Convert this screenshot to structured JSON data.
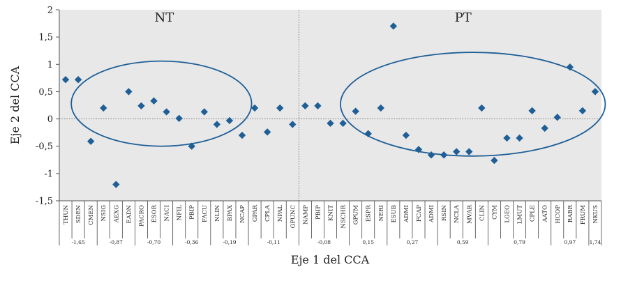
{
  "chart_data": {
    "type": "scatter",
    "xlabel": "Eje 1 del CCA",
    "ylabel": "Eje 2 del CCA",
    "ylim": [
      -1.5,
      2
    ],
    "yticks": [
      2,
      1.5,
      1,
      0.5,
      0,
      -0.5,
      -1,
      -1.5
    ],
    "ytick_labels": [
      "2",
      "1,5",
      "1",
      "0,5",
      "0",
      "-0,5",
      "-1",
      "-1,5"
    ],
    "grid": false,
    "background": "#e8e8e8",
    "marker_color": "#1f5f96",
    "ellipse_color": "#1f5f96",
    "zero_line": "dotted",
    "categories": [
      "THUN",
      "SDEN",
      "CMEN",
      "NSIG",
      "AEXG",
      "EADN",
      "PACRO",
      "ESOR",
      "NACI",
      "NFIL",
      "PBIP",
      "FACU",
      "NLIN",
      "BPAX",
      "NCAP",
      "GPAR",
      "CPLA",
      "NPAL",
      "GPUNC",
      "NAMP",
      "PBIP",
      "KNIT",
      "NSCHR",
      "GPUM",
      "ESPR",
      "NERI",
      "ESUB",
      "ADMI",
      "FCAP",
      "ADMI",
      "RSIN",
      "NCLA",
      "MVAR",
      "CLIN",
      "CYM",
      "LGEO",
      "LMUT",
      "CPLE",
      "AATO",
      "HCOP",
      "RABR",
      "FRUM",
      "NKUS"
    ],
    "values": [
      0.72,
      0.72,
      -0.41,
      0.2,
      -1.2,
      0.5,
      0.24,
      0.33,
      0.13,
      0.01,
      -0.5,
      0.13,
      -0.1,
      -0.03,
      -0.3,
      0.2,
      -0.24,
      0.2,
      -0.1,
      0.24,
      0.24,
      -0.08,
      -0.08,
      0.14,
      -0.27,
      0.2,
      1.7,
      -0.3,
      -0.56,
      -0.66,
      -0.66,
      -0.6,
      -0.6,
      0.2,
      -0.76,
      -0.35,
      -0.35,
      0.15,
      -0.17,
      0.03,
      0.95,
      0.15,
      0.5
    ],
    "groups": [
      {
        "label": "-1,65",
        "start": 0,
        "end": 2
      },
      {
        "label": "-0,87",
        "start": 3,
        "end": 5
      },
      {
        "label": "-0,70",
        "start": 6,
        "end": 8
      },
      {
        "label": "-0,36",
        "start": 9,
        "end": 11
      },
      {
        "label": "-0,19",
        "start": 12,
        "end": 14
      },
      {
        "label": "-0,11",
        "start": 15,
        "end": 18
      },
      {
        "label": "-0,08",
        "start": 19,
        "end": 22
      },
      {
        "label": "0,15",
        "start": 23,
        "end": 25
      },
      {
        "label": "0,27",
        "start": 26,
        "end": 29
      },
      {
        "label": "0,59",
        "start": 30,
        "end": 33
      },
      {
        "label": "0,79",
        "start": 34,
        "end": 38
      },
      {
        "label": "0,97",
        "start": 39,
        "end": 41
      },
      {
        "label": "1,74",
        "start": 42,
        "end": 42
      }
    ],
    "annotations": [
      {
        "text": "NT",
        "center_index": 7.6,
        "center_y": 0.28,
        "rx_cats": 7.15,
        "ry": 0.78
      },
      {
        "text": "PT",
        "center_index": 32.3,
        "center_y": 0.27,
        "rx_cats": 10.5,
        "ry": 0.95
      }
    ]
  }
}
